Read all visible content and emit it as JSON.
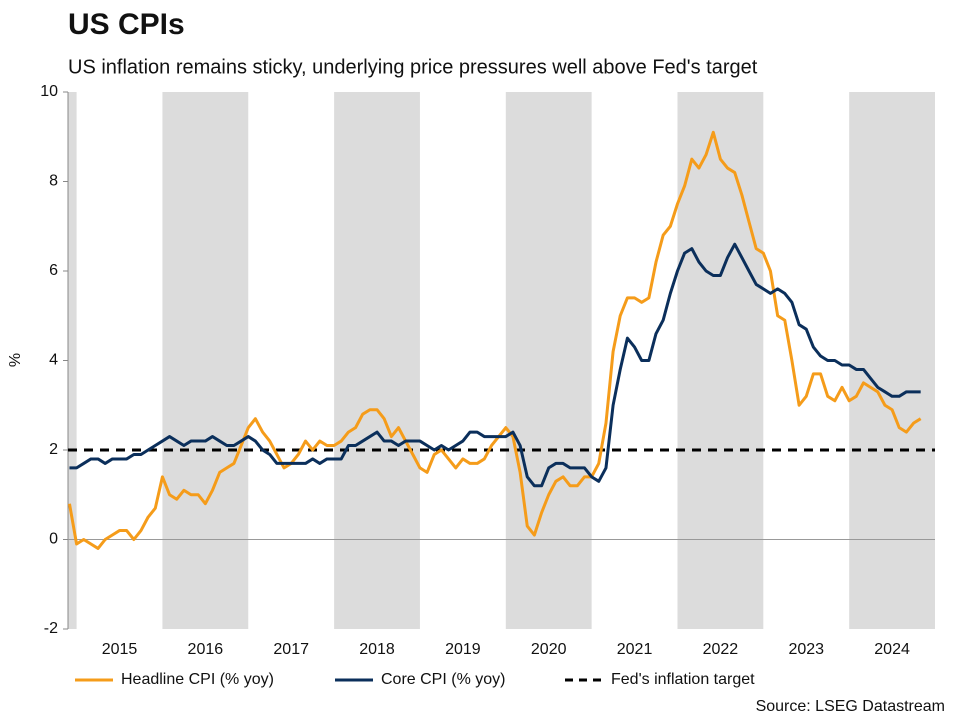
{
  "chart_data": {
    "type": "line",
    "title": "US CPIs",
    "subtitle": "US inflation remains sticky, underlying price pressures well above Fed's target",
    "ylabel": "%",
    "source": "Source: LSEG Datastream",
    "xlim": [
      2014.9,
      2025.0
    ],
    "ylim": [
      -2,
      10
    ],
    "yticks": [
      -2,
      0,
      2,
      4,
      6,
      8,
      10
    ],
    "xticks": [
      {
        "value": 2015.5,
        "label": "2015"
      },
      {
        "value": 2016.5,
        "label": "2016"
      },
      {
        "value": 2017.5,
        "label": "2017"
      },
      {
        "value": 2018.5,
        "label": "2018"
      },
      {
        "value": 2019.5,
        "label": "2019"
      },
      {
        "value": 2020.5,
        "label": "2020"
      },
      {
        "value": 2021.5,
        "label": "2021"
      },
      {
        "value": 2022.5,
        "label": "2022"
      },
      {
        "value": 2023.5,
        "label": "2023"
      },
      {
        "value": 2024.5,
        "label": "2024"
      }
    ],
    "bands": [
      {
        "from": 2014.9,
        "to": 2015
      },
      {
        "from": 2016,
        "to": 2017
      },
      {
        "from": 2018,
        "to": 2019
      },
      {
        "from": 2020,
        "to": 2021
      },
      {
        "from": 2022,
        "to": 2023
      },
      {
        "from": 2024,
        "to": 2025
      }
    ],
    "band_color": "#dcdcdc",
    "x": [
      2014.917,
      2015,
      2015.083,
      2015.167,
      2015.25,
      2015.333,
      2015.417,
      2015.5,
      2015.583,
      2015.667,
      2015.75,
      2015.833,
      2015.917,
      2016,
      2016.083,
      2016.167,
      2016.25,
      2016.333,
      2016.417,
      2016.5,
      2016.583,
      2016.667,
      2016.75,
      2016.833,
      2016.917,
      2017,
      2017.083,
      2017.167,
      2017.25,
      2017.333,
      2017.417,
      2017.5,
      2017.583,
      2017.667,
      2017.75,
      2017.833,
      2017.917,
      2018,
      2018.083,
      2018.167,
      2018.25,
      2018.333,
      2018.417,
      2018.5,
      2018.583,
      2018.667,
      2018.75,
      2018.833,
      2018.917,
      2019,
      2019.083,
      2019.167,
      2019.25,
      2019.333,
      2019.417,
      2019.5,
      2019.583,
      2019.667,
      2019.75,
      2019.833,
      2019.917,
      2020,
      2020.083,
      2020.167,
      2020.25,
      2020.333,
      2020.417,
      2020.5,
      2020.583,
      2020.667,
      2020.75,
      2020.833,
      2020.917,
      2021,
      2021.083,
      2021.167,
      2021.25,
      2021.333,
      2021.417,
      2021.5,
      2021.583,
      2021.667,
      2021.75,
      2021.833,
      2021.917,
      2022,
      2022.083,
      2022.167,
      2022.25,
      2022.333,
      2022.417,
      2022.5,
      2022.583,
      2022.667,
      2022.75,
      2022.833,
      2022.917,
      2023,
      2023.083,
      2023.167,
      2023.25,
      2023.333,
      2023.417,
      2023.5,
      2023.583,
      2023.667,
      2023.75,
      2023.833,
      2023.917,
      2024,
      2024.083,
      2024.167,
      2024.25,
      2024.333,
      2024.417,
      2024.5,
      2024.583,
      2024.667,
      2024.75,
      2024.833
    ],
    "series": [
      {
        "name": "Headline CPI (% yoy)",
        "color": "#f59c1a",
        "values": [
          0.8,
          -0.1,
          0.0,
          -0.1,
          -0.2,
          0.0,
          0.1,
          0.2,
          0.2,
          0.0,
          0.2,
          0.5,
          0.7,
          1.4,
          1.0,
          0.9,
          1.1,
          1.0,
          1.0,
          0.8,
          1.1,
          1.5,
          1.6,
          1.7,
          2.1,
          2.5,
          2.7,
          2.4,
          2.2,
          1.9,
          1.6,
          1.7,
          1.9,
          2.2,
          2.0,
          2.2,
          2.1,
          2.1,
          2.2,
          2.4,
          2.5,
          2.8,
          2.9,
          2.9,
          2.7,
          2.3,
          2.5,
          2.2,
          1.9,
          1.6,
          1.5,
          1.9,
          2.0,
          1.8,
          1.6,
          1.8,
          1.7,
          1.7,
          1.8,
          2.1,
          2.3,
          2.5,
          2.3,
          1.5,
          0.3,
          0.1,
          0.6,
          1.0,
          1.3,
          1.4,
          1.2,
          1.2,
          1.4,
          1.4,
          1.7,
          2.6,
          4.2,
          5.0,
          5.4,
          5.4,
          5.3,
          5.4,
          6.2,
          6.8,
          7.0,
          7.5,
          7.9,
          8.5,
          8.3,
          8.6,
          9.1,
          8.5,
          8.3,
          8.2,
          7.7,
          7.1,
          6.5,
          6.4,
          6.0,
          5.0,
          4.9,
          4.0,
          3.0,
          3.2,
          3.7,
          3.7,
          3.2,
          3.1,
          3.4,
          3.1,
          3.2,
          3.5,
          3.4,
          3.3,
          3.0,
          2.9,
          2.5,
          2.4,
          2.6,
          2.7
        ]
      },
      {
        "name": "Core CPI (% yoy)",
        "color": "#0b2f5b",
        "values": [
          1.6,
          1.6,
          1.7,
          1.8,
          1.8,
          1.7,
          1.8,
          1.8,
          1.8,
          1.9,
          1.9,
          2.0,
          2.1,
          2.2,
          2.3,
          2.2,
          2.1,
          2.2,
          2.2,
          2.2,
          2.3,
          2.2,
          2.1,
          2.1,
          2.2,
          2.3,
          2.2,
          2.0,
          1.9,
          1.7,
          1.7,
          1.7,
          1.7,
          1.7,
          1.8,
          1.7,
          1.8,
          1.8,
          1.8,
          2.1,
          2.1,
          2.2,
          2.3,
          2.4,
          2.2,
          2.2,
          2.1,
          2.2,
          2.2,
          2.2,
          2.1,
          2.0,
          2.1,
          2.0,
          2.1,
          2.2,
          2.4,
          2.4,
          2.3,
          2.3,
          2.3,
          2.3,
          2.4,
          2.1,
          1.4,
          1.2,
          1.2,
          1.6,
          1.7,
          1.7,
          1.6,
          1.6,
          1.6,
          1.4,
          1.3,
          1.6,
          3.0,
          3.8,
          4.5,
          4.3,
          4.0,
          4.0,
          4.6,
          4.9,
          5.5,
          6.0,
          6.4,
          6.5,
          6.2,
          6.0,
          5.9,
          5.9,
          6.3,
          6.6,
          6.3,
          6.0,
          5.7,
          5.6,
          5.5,
          5.6,
          5.5,
          5.3,
          4.8,
          4.7,
          4.3,
          4.1,
          4.0,
          4.0,
          3.9,
          3.9,
          3.8,
          3.8,
          3.6,
          3.4,
          3.3,
          3.2,
          3.2,
          3.3,
          3.3,
          3.3
        ]
      }
    ],
    "reference": {
      "name": "Fed's inflation target",
      "value": 2,
      "color": "#000000"
    }
  }
}
